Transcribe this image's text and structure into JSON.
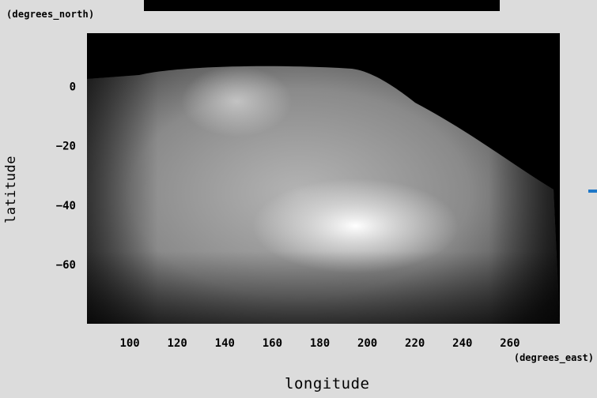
{
  "chart_data": {
    "type": "heatmap",
    "title": "",
    "xlabel": "longitude",
    "ylabel": "latitude",
    "x_units": "(degrees_east)",
    "y_units": "(degrees_north)",
    "xlim": [
      82,
      281
    ],
    "ylim": [
      -80,
      18
    ],
    "x_ticks": [
      100,
      120,
      140,
      160,
      180,
      200,
      220,
      240,
      260
    ],
    "y_ticks": [
      0,
      -20,
      -40,
      -60
    ],
    "colormap": "grayscale",
    "no_data_color": "#000000",
    "bright_regions": [
      {
        "lon": 145,
        "lat": -5,
        "intensity": 0.8
      },
      {
        "lon": 195,
        "lat": -47,
        "intensity": 1.0
      }
    ]
  },
  "colors": {
    "background": "#dcdcdc",
    "plot_background": "#000000",
    "accent_mark": "#1f78c8"
  }
}
